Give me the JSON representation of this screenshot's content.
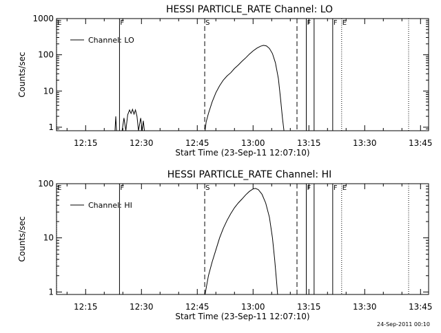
{
  "footer": {
    "timestamp": "24-Sep-2011 00:10"
  },
  "chart_data": [
    {
      "type": "line",
      "title": "HESSI PARTICLE_RATE Channel: LO",
      "xlabel": "Start Time (23-Sep-11 12:07:10)",
      "ylabel": "Counts/sec",
      "y_scale": "log",
      "x_unit": "minutes after 12:00",
      "xlim": [
        7.17,
        107.17
      ],
      "ylim": [
        0.8,
        1000
      ],
      "x_ticks": [
        {
          "value": 15,
          "label": "12:15"
        },
        {
          "value": 30,
          "label": "12:30"
        },
        {
          "value": 45,
          "label": "12:45"
        },
        {
          "value": 60,
          "label": "13:00"
        },
        {
          "value": 75,
          "label": "13:15"
        },
        {
          "value": 90,
          "label": "13:30"
        },
        {
          "value": 105,
          "label": "13:45"
        }
      ],
      "y_ticks": [
        {
          "value": 1,
          "label": "1"
        },
        {
          "value": 10,
          "label": "10"
        },
        {
          "value": 100,
          "label": "100"
        },
        {
          "value": 1000,
          "label": "1000"
        }
      ],
      "legend": {
        "placement": "top-left",
        "entries": [
          "Channel: LO"
        ]
      },
      "markers": [
        {
          "x": 7.2,
          "label": "E",
          "style": "dotted"
        },
        {
          "x": 24.1,
          "label": "F",
          "style": "solid"
        },
        {
          "x": 47.0,
          "label": "S",
          "style": "dashed"
        },
        {
          "x": 71.8,
          "label": "",
          "style": "dashed"
        },
        {
          "x": 74.3,
          "label": "F",
          "style": "solid"
        },
        {
          "x": 76.4,
          "label": "",
          "style": "solid"
        },
        {
          "x": 81.4,
          "label": "F",
          "style": "solid"
        },
        {
          "x": 83.8,
          "label": "E",
          "style": "dotted"
        },
        {
          "x": 101.8,
          "label": "",
          "style": "dotted"
        }
      ],
      "series": [
        {
          "name": "Channel: LO",
          "segments": [
            [
              [
                22.9,
                0.8
              ],
              [
                23.1,
                2.0
              ],
              [
                23.3,
                0.8
              ]
            ],
            [
              [
                24.8,
                0.8
              ],
              [
                25.3,
                1.8
              ],
              [
                25.8,
                0.8
              ],
              [
                26.3,
                2.2
              ],
              [
                26.8,
                3.0
              ],
              [
                27.2,
                2.4
              ],
              [
                27.6,
                3.1
              ],
              [
                28.0,
                2.3
              ],
              [
                28.4,
                3.0
              ],
              [
                28.8,
                2.0
              ],
              [
                29.2,
                0.8
              ]
            ],
            [
              [
                29.2,
                0.8
              ],
              [
                29.8,
                1.8
              ],
              [
                30.2,
                0.8
              ],
              [
                30.5,
                1.5
              ],
              [
                30.8,
                0.8
              ]
            ],
            [
              [
                47.1,
                0.8
              ],
              [
                47.4,
                1.4
              ],
              [
                48.0,
                2.4
              ],
              [
                49.0,
                5.0
              ],
              [
                50.0,
                9.0
              ],
              [
                51.0,
                14
              ],
              [
                52.0,
                20
              ],
              [
                53.0,
                26
              ],
              [
                54.0,
                32
              ],
              [
                55.0,
                42
              ],
              [
                56.0,
                52
              ],
              [
                57.0,
                66
              ],
              [
                58.0,
                82
              ],
              [
                59.0,
                104
              ],
              [
                60.0,
                128
              ],
              [
                61.0,
                152
              ],
              [
                62.0,
                172
              ],
              [
                62.8,
                182
              ],
              [
                63.6,
                176
              ],
              [
                64.4,
                150
              ],
              [
                65.2,
                108
              ],
              [
                66.0,
                60
              ],
              [
                66.8,
                22
              ],
              [
                67.4,
                6
              ],
              [
                67.9,
                1.8
              ],
              [
                68.3,
                0.8
              ]
            ]
          ]
        }
      ]
    },
    {
      "type": "line",
      "title": "HESSI PARTICLE_RATE Channel: HI",
      "xlabel": "Start Time (23-Sep-11 12:07:10)",
      "ylabel": "Counts/sec",
      "y_scale": "log",
      "x_unit": "minutes after 12:00",
      "xlim": [
        7.17,
        107.17
      ],
      "ylim": [
        0.9,
        100
      ],
      "x_ticks": [
        {
          "value": 15,
          "label": "12:15"
        },
        {
          "value": 30,
          "label": "12:30"
        },
        {
          "value": 45,
          "label": "12:45"
        },
        {
          "value": 60,
          "label": "13:00"
        },
        {
          "value": 75,
          "label": "13:15"
        },
        {
          "value": 90,
          "label": "13:30"
        },
        {
          "value": 105,
          "label": "13:45"
        }
      ],
      "y_ticks": [
        {
          "value": 1,
          "label": "1"
        },
        {
          "value": 10,
          "label": "10"
        },
        {
          "value": 100,
          "label": "100"
        }
      ],
      "legend": {
        "placement": "top-left",
        "entries": [
          "Channel: HI"
        ]
      },
      "markers": [
        {
          "x": 7.2,
          "label": "E",
          "style": "dotted"
        },
        {
          "x": 24.1,
          "label": "F",
          "style": "solid"
        },
        {
          "x": 47.0,
          "label": "S",
          "style": "dashed"
        },
        {
          "x": 71.8,
          "label": "",
          "style": "dashed"
        },
        {
          "x": 74.3,
          "label": "F",
          "style": "solid"
        },
        {
          "x": 76.4,
          "label": "",
          "style": "solid"
        },
        {
          "x": 81.4,
          "label": "F",
          "style": "solid"
        },
        {
          "x": 83.8,
          "label": "E",
          "style": "dotted"
        },
        {
          "x": 101.8,
          "label": "",
          "style": "dotted"
        }
      ],
      "series": [
        {
          "name": "Channel: HI",
          "segments": [
            [
              [
                47.1,
                0.9
              ],
              [
                47.5,
                1.3
              ],
              [
                48.0,
                2.0
              ],
              [
                49.0,
                3.6
              ],
              [
                50.0,
                6.0
              ],
              [
                51.0,
                10
              ],
              [
                52.0,
                15
              ],
              [
                53.0,
                21
              ],
              [
                54.0,
                28
              ],
              [
                55.0,
                36
              ],
              [
                56.0,
                44
              ],
              [
                57.0,
                52
              ],
              [
                58.0,
                62
              ],
              [
                59.0,
                72
              ],
              [
                60.0,
                80
              ],
              [
                60.6,
                82
              ],
              [
                61.4,
                78
              ],
              [
                62.4,
                64
              ],
              [
                63.4,
                44
              ],
              [
                64.4,
                24
              ],
              [
                65.2,
                10
              ],
              [
                65.8,
                4
              ],
              [
                66.3,
                1.6
              ],
              [
                66.6,
                0.9
              ]
            ]
          ]
        }
      ]
    }
  ]
}
